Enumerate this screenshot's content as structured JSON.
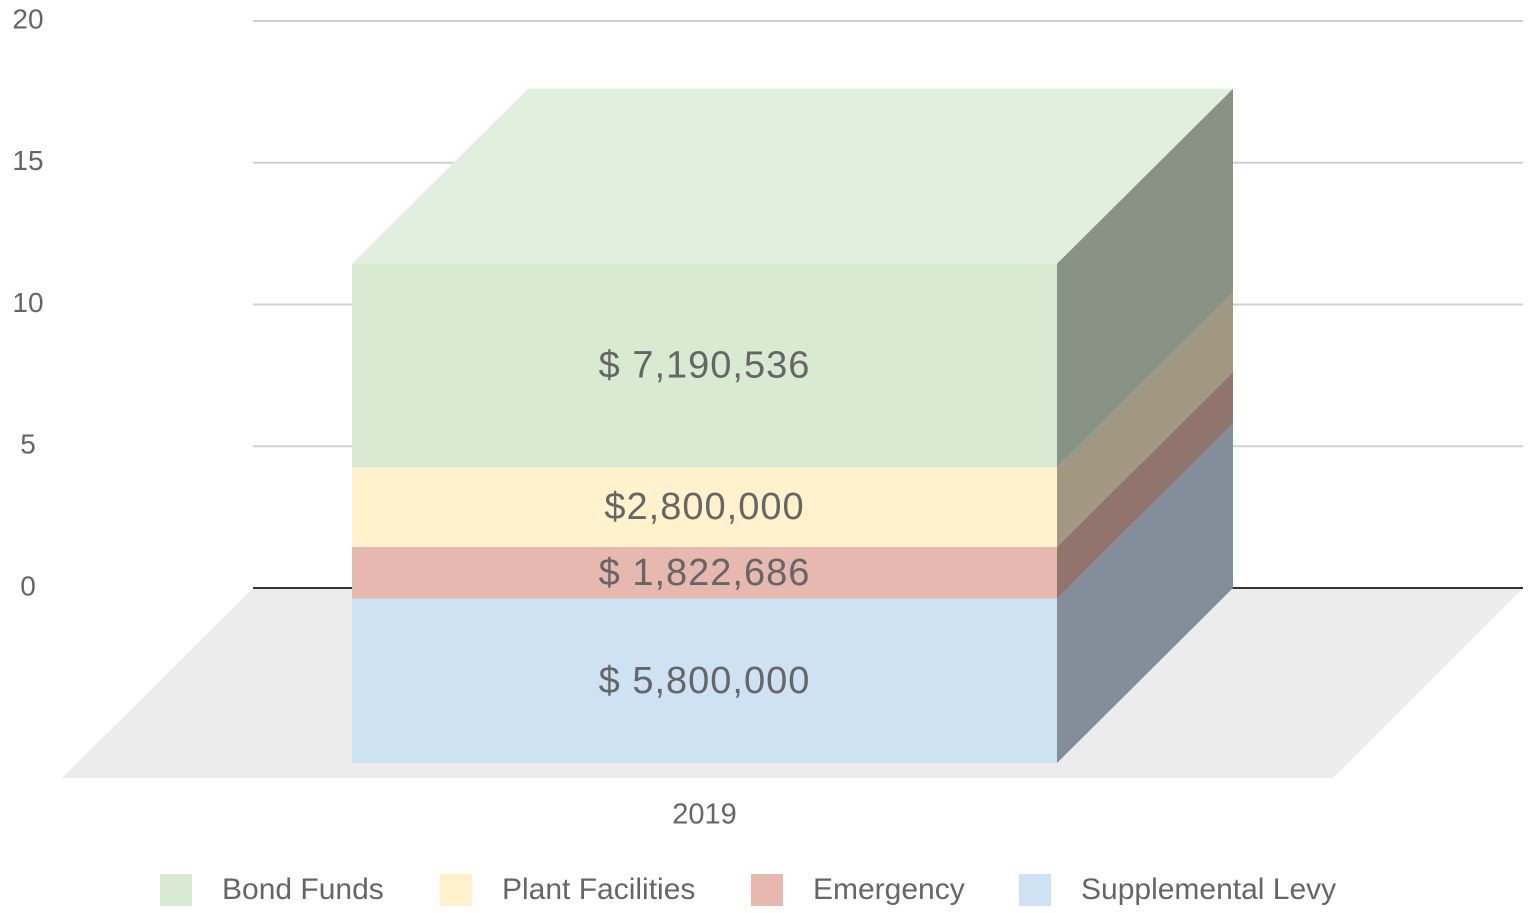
{
  "chart_data": {
    "type": "bar3d_stacked",
    "categories": [
      "2019"
    ],
    "series": [
      {
        "name": "Bond Funds",
        "color": "#d9ead3",
        "values": [
          7.190536
        ],
        "value_labels": [
          "$ 7,190,536"
        ]
      },
      {
        "name": "Plant Facilities",
        "color": "#fff2cc",
        "values": [
          2.8
        ],
        "value_labels": [
          "$2,800,000"
        ]
      },
      {
        "name": "Emergency",
        "color": "#e6b8af",
        "values": [
          1.822686
        ],
        "value_labels": [
          "$ 1,822,686"
        ]
      },
      {
        "name": "Supplemental Levy",
        "color": "#cfe2f3",
        "values": [
          5.8
        ],
        "value_labels": [
          "$ 5,800,000"
        ]
      }
    ],
    "ylim": [
      0,
      20
    ],
    "yticks": [
      0,
      5,
      10,
      15,
      20
    ],
    "grid": true
  }
}
